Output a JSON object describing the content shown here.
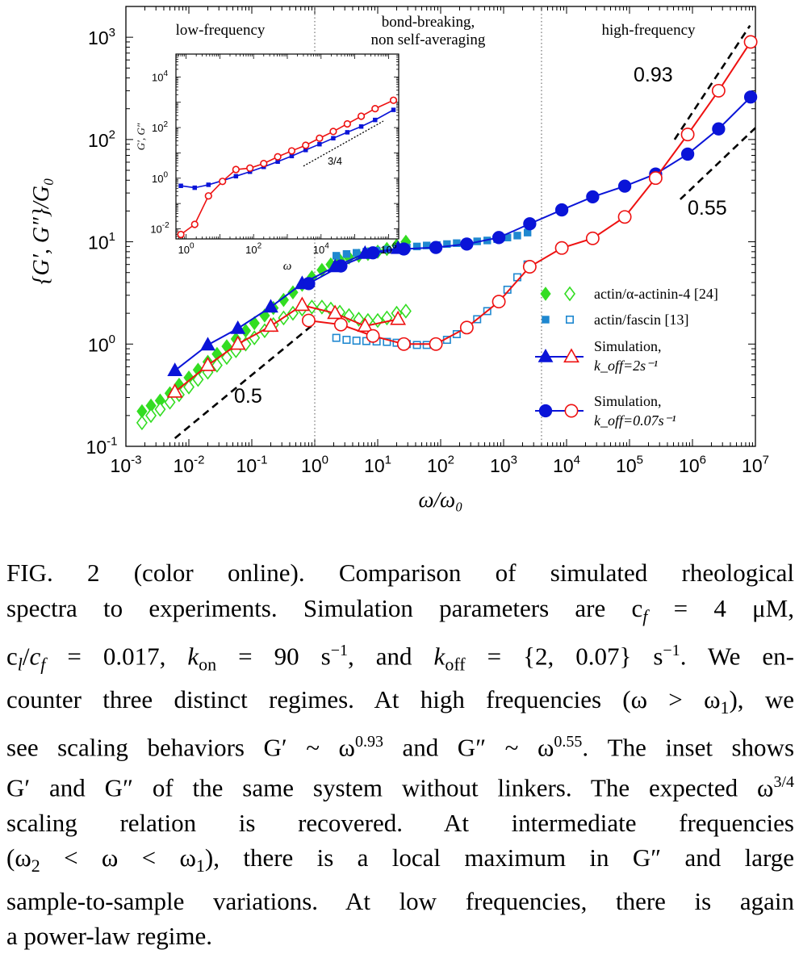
{
  "chart_data": [
    {
      "type": "scatter",
      "xlabel": "ω/ω₀",
      "ylabel": "{G′, G″}/G₀",
      "xscale": "log",
      "yscale": "log",
      "xlim": [
        0.001,
        10000000
      ],
      "ylim": [
        0.1,
        2000
      ],
      "x_ticks": [
        0.001,
        0.01,
        0.1,
        1,
        10,
        100,
        1000,
        10000,
        100000,
        1000000,
        10000000
      ],
      "x_tick_labels": [
        "10",
        "10",
        "10",
        "10",
        "10",
        "10",
        "10",
        "10",
        "10",
        "10",
        "10"
      ],
      "x_tick_exponents": [
        "-3",
        "-2",
        "-1",
        "0",
        "1",
        "2",
        "3",
        "4",
        "5",
        "6",
        "7"
      ],
      "y_ticks": [
        0.1,
        1,
        10,
        100,
        1000
      ],
      "y_tick_labels": [
        "10",
        "10",
        "10",
        "10",
        "10"
      ],
      "y_tick_exponents": [
        "-1",
        "0",
        "1",
        "2",
        "3"
      ],
      "grid": false,
      "legend": "right",
      "regions": [
        {
          "label": "low-frequency",
          "x_range": [
            0.001,
            1
          ]
        },
        {
          "label": "bond-breaking,",
          "label2": "non self-averaging",
          "x_range": [
            1,
            4000
          ]
        },
        {
          "label": "high-frequency",
          "x_range": [
            4000,
            10000000
          ]
        }
      ],
      "boundaries_x": [
        1,
        4000
      ],
      "annotations": [
        {
          "text": "0.93",
          "slope": 0.93
        },
        {
          "text": "0.55",
          "slope": 0.55
        },
        {
          "text": "0.5",
          "slope": 0.5
        }
      ],
      "guide_lines": [
        {
          "x": [
            520000,
            8200000
          ],
          "y": [
            100,
            1300
          ]
        },
        {
          "x": [
            640000,
            10000000
          ],
          "y": [
            26,
            130
          ]
        },
        {
          "x": [
            0.006,
            1
          ],
          "y": [
            0.12,
            1.6
          ]
        }
      ],
      "legend_entries": [
        {
          "label": "actin/α-actinin-4 [24]"
        },
        {
          "label": "actin/fascin [13]"
        },
        {
          "label": "Simulation,",
          "label2": "k_off=2s⁻¹"
        },
        {
          "label": "Simulation,",
          "label2": "k_off=0.07s⁻¹"
        }
      ],
      "series": [
        {
          "name": "actin/α-actinin-4 [24] G′",
          "color": "#33dd22",
          "marker": "diamond-filled",
          "x": [
            0.0018,
            0.0025,
            0.0035,
            0.005,
            0.007,
            0.01,
            0.014,
            0.02,
            0.028,
            0.04,
            0.056,
            0.08,
            0.11,
            0.16,
            0.22,
            0.32,
            0.45,
            0.63,
            0.9,
            1.3,
            1.8,
            2.5,
            3.5,
            5,
            7,
            10,
            14,
            20,
            28
          ],
          "y": [
            0.22,
            0.25,
            0.28,
            0.33,
            0.4,
            0.47,
            0.56,
            0.67,
            0.8,
            0.95,
            1.12,
            1.35,
            1.6,
            1.9,
            2.25,
            2.7,
            3.2,
            3.8,
            4.5,
            5.3,
            6,
            6.6,
            7,
            7.3,
            7.6,
            8,
            8.5,
            9.2,
            10
          ]
        },
        {
          "name": "actin/α-actinin-4 [24] G″",
          "color": "#33dd22",
          "marker": "diamond-open",
          "x": [
            0.0018,
            0.0025,
            0.0035,
            0.005,
            0.007,
            0.01,
            0.014,
            0.02,
            0.028,
            0.04,
            0.056,
            0.08,
            0.11,
            0.16,
            0.22,
            0.32,
            0.45,
            0.63,
            0.9,
            1.3,
            1.8,
            2.5,
            3.5,
            5,
            7,
            10,
            14,
            20,
            28
          ],
          "y": [
            0.17,
            0.2,
            0.23,
            0.27,
            0.32,
            0.38,
            0.45,
            0.53,
            0.62,
            0.74,
            0.86,
            1.0,
            1.15,
            1.35,
            1.55,
            1.8,
            2.0,
            2.2,
            2.3,
            2.3,
            2.2,
            2.05,
            1.9,
            1.75,
            1.7,
            1.7,
            1.8,
            2.0,
            2.1
          ]
        },
        {
          "name": "actin/fascin [13] G′",
          "color": "#1f88d0",
          "marker": "square-filled",
          "x": [
            2.2,
            3.2,
            4.6,
            6.6,
            9.6,
            14,
            20,
            29,
            42,
            60,
            87,
            126,
            180,
            260,
            380,
            550,
            790,
            1150,
            1650,
            2400
          ],
          "y": [
            7.3,
            7.6,
            7.8,
            8.0,
            8.2,
            8.4,
            8.6,
            8.8,
            9.0,
            9.2,
            9.3,
            9.5,
            9.7,
            9.9,
            10.1,
            10.3,
            10.6,
            11,
            11.5,
            12.3
          ]
        },
        {
          "name": "actin/fascin [13] G″",
          "color": "#1f88d0",
          "marker": "square-open",
          "x": [
            2.2,
            3.2,
            4.6,
            6.6,
            9.6,
            14,
            20,
            29,
            42,
            60,
            87,
            126,
            180,
            260,
            380,
            550,
            790,
            1150,
            1650,
            2400
          ],
          "y": [
            1.15,
            1.1,
            1.08,
            1.07,
            1.06,
            1.05,
            1.03,
            1.0,
            0.98,
            0.98,
            1.0,
            1.1,
            1.25,
            1.45,
            1.75,
            2.1,
            2.6,
            3.4,
            4.5,
            6.0
          ]
        },
        {
          "name": "Simulation, k_off=2s⁻¹ G′",
          "color": "#0a14d8",
          "marker": "triangle-filled",
          "x": [
            0.006,
            0.02,
            0.06,
            0.2,
            0.63,
            2.1,
            6.3,
            21
          ],
          "y": [
            0.55,
            0.98,
            1.42,
            2.3,
            3.9,
            5.7,
            7.7,
            8.6
          ]
        },
        {
          "name": "Simulation, k_off=2s⁻¹ G″",
          "color": "#ee1111",
          "marker": "triangle-open",
          "x": [
            0.006,
            0.02,
            0.06,
            0.2,
            0.63,
            2.1,
            6.3,
            21
          ],
          "y": [
            0.34,
            0.62,
            1.0,
            1.5,
            2.4,
            2.0,
            1.5,
            1.75
          ]
        },
        {
          "name": "Simulation, k_off=0.07s⁻¹ G′",
          "color": "#0a14d8",
          "marker": "circle-filled",
          "x": [
            0.8,
            2.6,
            8.4,
            26,
            84,
            260,
            840,
            2600,
            8400,
            26000,
            84000,
            260000,
            840000,
            2600000,
            8400000
          ],
          "y": [
            3.9,
            5.8,
            7.8,
            8.5,
            8.8,
            9.5,
            11,
            15,
            20.5,
            27.5,
            35,
            46,
            72,
            127,
            260
          ]
        },
        {
          "name": "Simulation, k_off=0.07s⁻¹ G″",
          "color": "#ee1111",
          "marker": "circle-open",
          "x": [
            0.8,
            2.6,
            8.4,
            26,
            84,
            260,
            840,
            2600,
            8400,
            26000,
            84000,
            260000,
            840000,
            2600000,
            8400000
          ],
          "y": [
            1.7,
            1.55,
            1.2,
            1.0,
            1.0,
            1.45,
            2.6,
            5.7,
            8.7,
            10.8,
            17.5,
            42,
            112,
            300,
            900
          ]
        }
      ]
    },
    {
      "type": "line",
      "xlabel": "ω",
      "ylabel": "G′, G″",
      "xscale": "log",
      "yscale": "log",
      "xlim": [
        0.5,
        2000000
      ],
      "ylim": [
        0.004,
        80000
      ],
      "x_ticks": [
        1,
        100,
        10000,
        1000000
      ],
      "x_tick_labels": [
        "10",
        "10",
        "10",
        "10"
      ],
      "x_tick_exponents": [
        "0",
        "2",
        "4",
        "6"
      ],
      "y_ticks": [
        0.01,
        1,
        100,
        10000
      ],
      "y_tick_labels": [
        "10",
        "10",
        "10",
        "10"
      ],
      "y_tick_exponents": [
        "-2",
        "0",
        "2",
        "4"
      ],
      "annotation": {
        "text": "3/4",
        "slope": 0.75,
        "x": [
          3000,
          700000
        ],
        "y": [
          3,
          180
        ]
      },
      "series": [
        {
          "name": "G′",
          "color": "#0a14d8",
          "marker": "square-filled",
          "x": [
            0.7,
            1.8,
            4.6,
            12,
            30,
            78,
            200,
            520,
            1350,
            3500,
            9000,
            23000,
            60000,
            155000,
            400000,
            1400000
          ],
          "y": [
            0.5,
            0.42,
            0.55,
            0.8,
            1.2,
            1.8,
            2.8,
            4.5,
            7.5,
            13,
            22,
            38,
            65,
            110,
            200,
            500
          ]
        },
        {
          "name": "G″",
          "color": "#ee1111",
          "marker": "circle-open",
          "x": [
            0.7,
            1.8,
            4.6,
            12,
            30,
            78,
            200,
            520,
            1350,
            3500,
            9000,
            23000,
            60000,
            155000,
            400000,
            1400000
          ],
          "y": [
            0.006,
            0.015,
            0.2,
            0.75,
            2.2,
            2.5,
            3.8,
            7,
            12,
            20,
            38,
            70,
            140,
            280,
            560,
            1200
          ]
        }
      ]
    }
  ],
  "caption": {
    "line1": "FIG. 2 (color online).  Comparison of simulated rheological",
    "line2": "spectra to experiments. Simulation parameters are c",
    "line3": "c",
    "line4": "counter three distinct regimes. At high frequencies (ω > ω",
    "line5": "see scaling behaviors G′ ~ ω",
    "line6": "G′ and G″ of the same system without linkers. The expected ω",
    "line7": "scaling relation is recovered. At intermediate frequencies",
    "line8": "(ω",
    "line9": "sample-to-sample variations. At low frequencies, there is again",
    "line10": "a power-law regime."
  }
}
